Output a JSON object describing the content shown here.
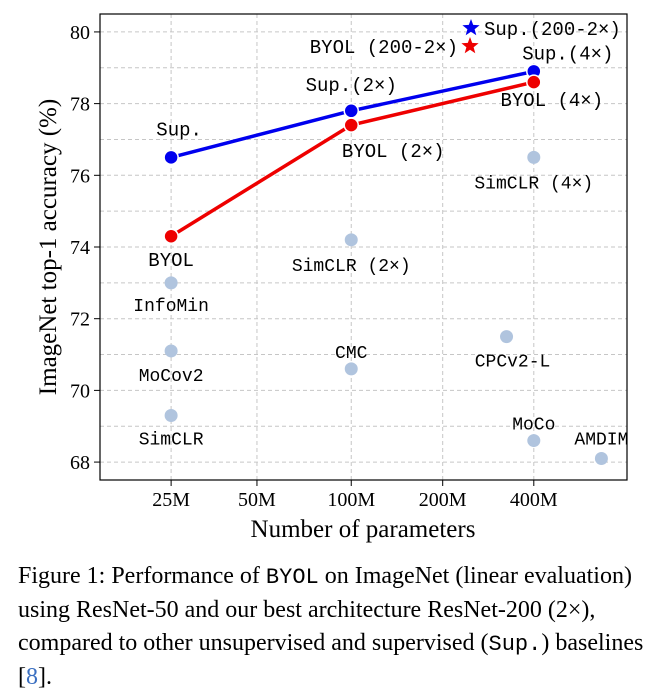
{
  "chart_data": {
    "type": "scatter",
    "xlabel": "Number of parameters",
    "ylabel": "ImageNet top-1 accuracy (%)",
    "x_scale": "log",
    "xlim": [
      14,
      760
    ],
    "ylim": [
      67.5,
      80.5
    ],
    "x_ticks": [
      {
        "value": 24,
        "label": "25M"
      },
      {
        "value": 46,
        "label": "50M"
      },
      {
        "value": 94,
        "label": "100M"
      },
      {
        "value": 188,
        "label": "200M"
      },
      {
        "value": 375,
        "label": "400M"
      }
    ],
    "y_ticks": [
      68,
      70,
      72,
      74,
      76,
      78,
      80
    ],
    "grid": true,
    "series": [
      {
        "name": "Sup.",
        "color": "#0000ee",
        "points": [
          [
            24,
            76.5
          ],
          [
            94,
            77.8
          ],
          [
            375,
            78.9
          ]
        ]
      },
      {
        "name": "BYOL",
        "color": "#ee0000",
        "points": [
          [
            24,
            74.3
          ],
          [
            94,
            77.4
          ],
          [
            375,
            78.6
          ]
        ]
      }
    ],
    "series_labels": [
      {
        "text": "Sup.",
        "x": 24,
        "y": 76.5,
        "dx": 8,
        "dy": -22
      },
      {
        "text": "Sup.(2×)",
        "x": 94,
        "y": 77.8,
        "dx": 0,
        "dy": -20
      },
      {
        "text": "Sup.(4×)",
        "x": 375,
        "y": 78.9,
        "dx": 34,
        "dy": -12
      },
      {
        "text": "BYOL",
        "x": 24,
        "y": 74.3,
        "dx": 0,
        "dy": 30
      },
      {
        "text": "BYOL (2×)",
        "x": 94,
        "y": 77.4,
        "dx": 42,
        "dy": 32
      },
      {
        "text": "BYOL (4×)",
        "x": 375,
        "y": 78.6,
        "dx": 18,
        "dy": 24
      }
    ],
    "baselines_color": "#b0c4de",
    "baselines": [
      {
        "name": "InfoMin",
        "x": 24,
        "y": 73.0,
        "dx": 0,
        "dy": 28
      },
      {
        "name": "MoCov2",
        "x": 24,
        "y": 71.1,
        "dx": 0,
        "dy": 30
      },
      {
        "name": "SimCLR",
        "x": 24,
        "y": 69.3,
        "dx": 0,
        "dy": 29
      },
      {
        "name": "SimCLR (2×)",
        "x": 94,
        "y": 74.2,
        "dx": 0,
        "dy": 31
      },
      {
        "name": "CMC",
        "x": 94,
        "y": 70.6,
        "dx": 0,
        "dy": -11
      },
      {
        "name": "SimCLR (4×)",
        "x": 375,
        "y": 76.5,
        "dx": 0,
        "dy": 31
      },
      {
        "name": "CPCv2-L",
        "x": 305,
        "y": 71.5,
        "dx": 6,
        "dy": 30
      },
      {
        "name": "MoCo",
        "x": 375,
        "y": 68.6,
        "dx": 0,
        "dy": -11
      },
      {
        "name": "AMDIM",
        "x": 626,
        "y": 68.1,
        "dx": 0,
        "dy": -14
      }
    ],
    "legend_position": "top-right",
    "legend": [
      {
        "label": "Sup.(200-2×)",
        "color": "#0000ee",
        "marker": "star"
      },
      {
        "label": "BYOL (200-2×)",
        "color": "#ee0000",
        "marker": "star"
      }
    ]
  },
  "caption": {
    "p1": "Figure 1: Performance of ",
    "code1": "BYOL",
    "p2": " on ImageNet (linear evaluation) using ResNet-50 and our best architecture ResNet-200 (2×), compared to other unsupervised and supervised (",
    "code2": "Sup.",
    "p3": ") baselines [",
    "ref": "8",
    "p4": "]."
  }
}
